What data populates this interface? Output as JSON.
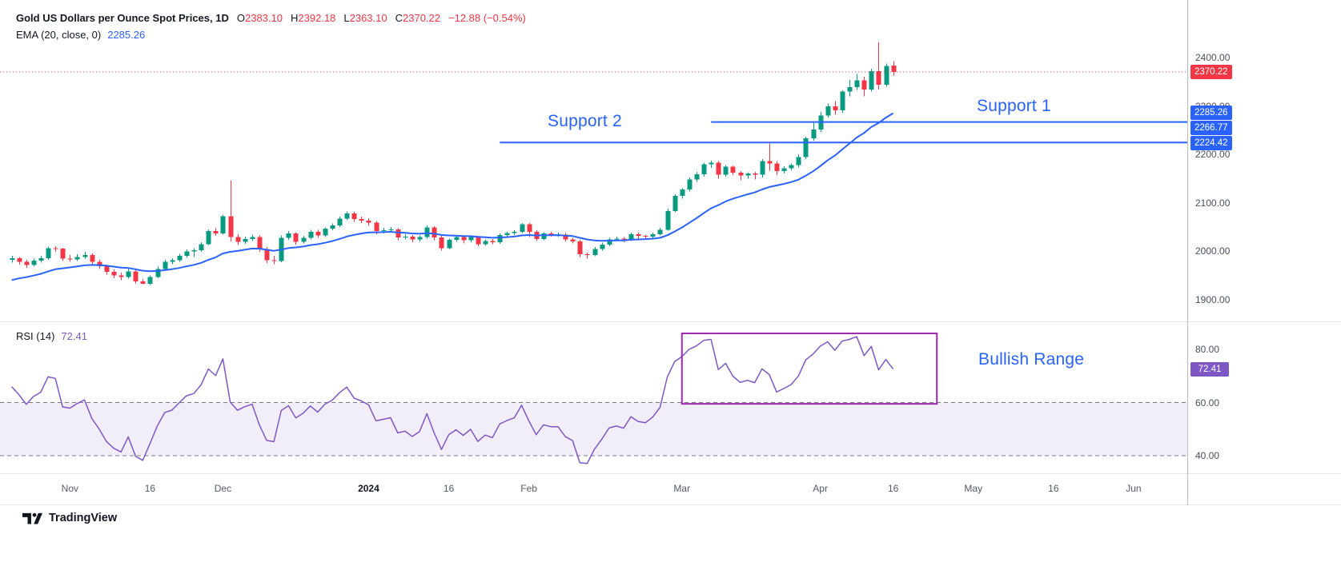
{
  "colors": {
    "up": "#089981",
    "down": "#F23645",
    "ema": "#2962FF",
    "accent": "#2962FF",
    "rsi": "#7E57C2",
    "rsi_band_fill": "rgba(126,87,194,0.10)",
    "rsi_band_line": "#787B86",
    "box": "#9C27B0",
    "last_price": "#F23645",
    "separator": "#E0E3EB"
  },
  "legend": {
    "title": "Gold US Dollars per Ounce Spot Prices, 1D",
    "o_label": "O",
    "open": "2383.10",
    "h_label": "H",
    "high": "2392.18",
    "l_label": "L",
    "low": "2363.10",
    "c_label": "C",
    "close": "2370.22",
    "change": "−12.88 (−0.54%)",
    "ema_name": "EMA (20, close, 0)",
    "ema_value": "2285.26",
    "rsi_name": "RSI (14)",
    "rsi_value": "72.41"
  },
  "annotations": {
    "support1": {
      "label": "Support 1",
      "price": 2266.77,
      "start_bar": 96
    },
    "support2": {
      "label": "Support 2",
      "price": 2224.42,
      "start_bar": 67
    },
    "last_price": 2370.22
  },
  "price_axis": {
    "ticks": [
      {
        "label": "2400.00",
        "price": 2400
      },
      {
        "label": "2300.00",
        "price": 2300
      },
      {
        "label": "2200.00",
        "price": 2200
      },
      {
        "label": "2100.00",
        "price": 2100
      },
      {
        "label": "2000.00",
        "price": 2000
      },
      {
        "label": "1900.00",
        "price": 1900
      }
    ],
    "badges": [
      {
        "label": "2370.22",
        "price": 2370.22,
        "color": "#F23645"
      },
      {
        "label": "2285.26",
        "price": 2285.26,
        "color": "#2962FF"
      },
      {
        "label": "2266.77",
        "price": 2266.77,
        "color": "#2962FF"
      },
      {
        "label": "2224.42",
        "price": 2224.42,
        "color": "#2962FF"
      }
    ]
  },
  "rsi_axis": {
    "ticks": [
      {
        "label": "80.00",
        "value": 80
      },
      {
        "label": "60.00",
        "value": 60
      },
      {
        "label": "40.00",
        "value": 40
      }
    ],
    "badge": {
      "label": "72.41",
      "value": 72.41,
      "color": "#7E57C2"
    }
  },
  "time_axis": {
    "ticks": [
      {
        "label": "Nov",
        "bar": 8
      },
      {
        "label": "16",
        "bar": 19
      },
      {
        "label": "Dec",
        "bar": 29
      },
      {
        "label": "2024",
        "bar": 49,
        "major": true
      },
      {
        "label": "16",
        "bar": 60
      },
      {
        "label": "Feb",
        "bar": 71
      },
      {
        "label": "Mar",
        "bar": 92
      },
      {
        "label": "Apr",
        "bar": 111
      },
      {
        "label": "16",
        "bar": 121
      },
      {
        "label": "May",
        "bar": 132
      },
      {
        "label": "16",
        "bar": 143
      },
      {
        "label": "Jun",
        "bar": 154
      }
    ]
  },
  "branding": {
    "name": "TradingView"
  },
  "chart_data": [
    {
      "type": "candlestick",
      "symbol": "Gold US Dollars per Ounce Spot Prices",
      "interval": "1D",
      "last_ohlc": {
        "open": 2383.1,
        "high": 2392.18,
        "low": 2363.1,
        "close": 2370.22,
        "change": -12.88,
        "change_pct": -0.54
      },
      "ylim": [
        1855,
        2515
      ],
      "ohlc": [
        [
          1982,
          1990,
          1976,
          1985
        ],
        [
          1985,
          1988,
          1972,
          1978
        ],
        [
          1978,
          1982,
          1965,
          1971
        ],
        [
          1971,
          1984,
          1968,
          1980
        ],
        [
          1980,
          1990,
          1976,
          1985
        ],
        [
          1985,
          2009,
          1982,
          2006
        ],
        [
          2006,
          2010,
          1998,
          2005
        ],
        [
          2005,
          2007,
          1979,
          1984
        ],
        [
          1984,
          1992,
          1978,
          1983
        ],
        [
          1983,
          1993,
          1979,
          1988
        ],
        [
          1988,
          1998,
          1984,
          1992
        ],
        [
          1992,
          1995,
          1972,
          1978
        ],
        [
          1978,
          1982,
          1963,
          1969
        ],
        [
          1969,
          1972,
          1951,
          1957
        ],
        [
          1957,
          1962,
          1944,
          1950
        ],
        [
          1950,
          1955,
          1940,
          1946
        ],
        [
          1946,
          1964,
          1943,
          1958
        ],
        [
          1958,
          1960,
          1933,
          1937
        ],
        [
          1937,
          1942,
          1931,
          1932
        ],
        [
          1932,
          1950,
          1930,
          1946
        ],
        [
          1946,
          1968,
          1944,
          1963
        ],
        [
          1963,
          1982,
          1960,
          1978
        ],
        [
          1978,
          1985,
          1973,
          1981
        ],
        [
          1981,
          1994,
          1978,
          1990
        ],
        [
          1990,
          2003,
          1986,
          1999
        ],
        [
          1999,
          2006,
          1988,
          2002
        ],
        [
          2002,
          2018,
          1998,
          2014
        ],
        [
          2014,
          2045,
          2012,
          2041
        ],
        [
          2041,
          2047,
          2031,
          2036
        ],
        [
          2036,
          2075,
          2034,
          2072
        ],
        [
          2072,
          2146,
          2020,
          2029
        ],
        [
          2029,
          2035,
          2012,
          2019
        ],
        [
          2019,
          2030,
          2015,
          2025
        ],
        [
          2025,
          2034,
          2021,
          2029
        ],
        [
          2029,
          2032,
          1998,
          2004
        ],
        [
          2004,
          2008,
          1975,
          1981
        ],
        [
          1981,
          1990,
          1973,
          1979
        ],
        [
          1979,
          2032,
          1977,
          2027
        ],
        [
          2027,
          2041,
          2023,
          2036
        ],
        [
          2036,
          2039,
          2013,
          2019
        ],
        [
          2019,
          2031,
          2016,
          2027
        ],
        [
          2027,
          2044,
          2024,
          2040
        ],
        [
          2040,
          2044,
          2027,
          2032
        ],
        [
          2032,
          2049,
          2029,
          2046
        ],
        [
          2046,
          2057,
          2043,
          2053
        ],
        [
          2053,
          2071,
          2050,
          2067
        ],
        [
          2067,
          2082,
          2064,
          2078
        ],
        [
          2078,
          2081,
          2060,
          2066
        ],
        [
          2066,
          2071,
          2058,
          2063
        ],
        [
          2063,
          2068,
          2052,
          2059
        ],
        [
          2059,
          2062,
          2035,
          2041
        ],
        [
          2041,
          2048,
          2036,
          2043
        ],
        [
          2043,
          2050,
          2039,
          2045
        ],
        [
          2045,
          2047,
          2022,
          2028
        ],
        [
          2028,
          2035,
          2024,
          2030
        ],
        [
          2030,
          2033,
          2018,
          2024
        ],
        [
          2024,
          2032,
          2020,
          2029
        ],
        [
          2029,
          2053,
          2026,
          2049
        ],
        [
          2049,
          2051,
          2022,
          2028
        ],
        [
          2028,
          2031,
          2001,
          2006
        ],
        [
          2006,
          2026,
          2004,
          2023
        ],
        [
          2023,
          2032,
          2019,
          2029
        ],
        [
          2029,
          2031,
          2016,
          2022
        ],
        [
          2022,
          2032,
          2018,
          2029
        ],
        [
          2029,
          2031,
          2010,
          2014
        ],
        [
          2014,
          2024,
          2011,
          2021
        ],
        [
          2021,
          2025,
          2014,
          2018
        ],
        [
          2018,
          2036,
          2015,
          2033
        ],
        [
          2033,
          2040,
          2029,
          2037
        ],
        [
          2037,
          2043,
          2033,
          2040
        ],
        [
          2040,
          2058,
          2037,
          2055
        ],
        [
          2055,
          2058,
          2029,
          2040
        ],
        [
          2040,
          2043,
          2021,
          2025
        ],
        [
          2025,
          2039,
          2022,
          2036
        ],
        [
          2036,
          2040,
          2030,
          2034
        ],
        [
          2034,
          2038,
          2029,
          2034
        ],
        [
          2034,
          2037,
          2020,
          2024
        ],
        [
          2024,
          2027,
          2016,
          2020
        ],
        [
          2020,
          2023,
          1988,
          1993
        ],
        [
          1993,
          1997,
          1984,
          1992
        ],
        [
          1992,
          2008,
          1989,
          2004
        ],
        [
          2004,
          2017,
          2001,
          2013
        ],
        [
          2013,
          2027,
          2010,
          2024
        ],
        [
          2024,
          2030,
          2020,
          2026
        ],
        [
          2026,
          2029,
          2018,
          2024
        ],
        [
          2024,
          2038,
          2021,
          2035
        ],
        [
          2035,
          2038,
          2026,
          2031
        ],
        [
          2031,
          2034,
          2024,
          2030
        ],
        [
          2030,
          2038,
          2026,
          2035
        ],
        [
          2035,
          2048,
          2032,
          2044
        ],
        [
          2044,
          2088,
          2042,
          2083
        ],
        [
          2083,
          2117,
          2080,
          2114
        ],
        [
          2114,
          2130,
          2108,
          2127
        ],
        [
          2127,
          2152,
          2123,
          2148
        ],
        [
          2148,
          2164,
          2143,
          2159
        ],
        [
          2159,
          2183,
          2154,
          2179
        ],
        [
          2179,
          2187,
          2172,
          2183
        ],
        [
          2183,
          2186,
          2150,
          2158
        ],
        [
          2158,
          2178,
          2154,
          2174
        ],
        [
          2174,
          2177,
          2157,
          2162
        ],
        [
          2162,
          2165,
          2146,
          2156
        ],
        [
          2156,
          2163,
          2150,
          2160
        ],
        [
          2160,
          2164,
          2148,
          2158
        ],
        [
          2158,
          2190,
          2152,
          2186
        ],
        [
          2186,
          2222,
          2166,
          2181
        ],
        [
          2181,
          2186,
          2157,
          2165
        ],
        [
          2165,
          2175,
          2160,
          2171
        ],
        [
          2171,
          2181,
          2167,
          2178
        ],
        [
          2178,
          2200,
          2173,
          2194
        ],
        [
          2194,
          2236,
          2190,
          2233
        ],
        [
          2233,
          2266,
          2228,
          2251
        ],
        [
          2251,
          2288,
          2246,
          2280
        ],
        [
          2280,
          2305,
          2276,
          2299
        ],
        [
          2299,
          2310,
          2282,
          2291
        ],
        [
          2291,
          2332,
          2286,
          2330
        ],
        [
          2330,
          2354,
          2320,
          2339
        ],
        [
          2339,
          2366,
          2333,
          2353
        ],
        [
          2353,
          2360,
          2320,
          2334
        ],
        [
          2334,
          2377,
          2330,
          2372
        ],
        [
          2372,
          2431,
          2334,
          2344
        ],
        [
          2344,
          2388,
          2340,
          2383
        ],
        [
          2383.1,
          2392.18,
          2363.1,
          2370.22
        ]
      ],
      "overlays": [
        {
          "name": "EMA (20, close, 0)",
          "type": "EMA",
          "period": 20,
          "seed": 1935,
          "last_value": 2285.26,
          "color": "#2962FF"
        }
      ]
    },
    {
      "type": "line",
      "name": "RSI (14)",
      "period": 14,
      "seed_avg_gain": 6,
      "seed_avg_loss": 3,
      "first_value": 66,
      "last_value": 72.41,
      "ylim": [
        33,
        90
      ],
      "band": [
        60,
        40
      ],
      "box": {
        "label": "Bullish Range",
        "start_bar": 92,
        "end_bar": 127,
        "top": 86,
        "bottom": 59.5
      }
    }
  ]
}
